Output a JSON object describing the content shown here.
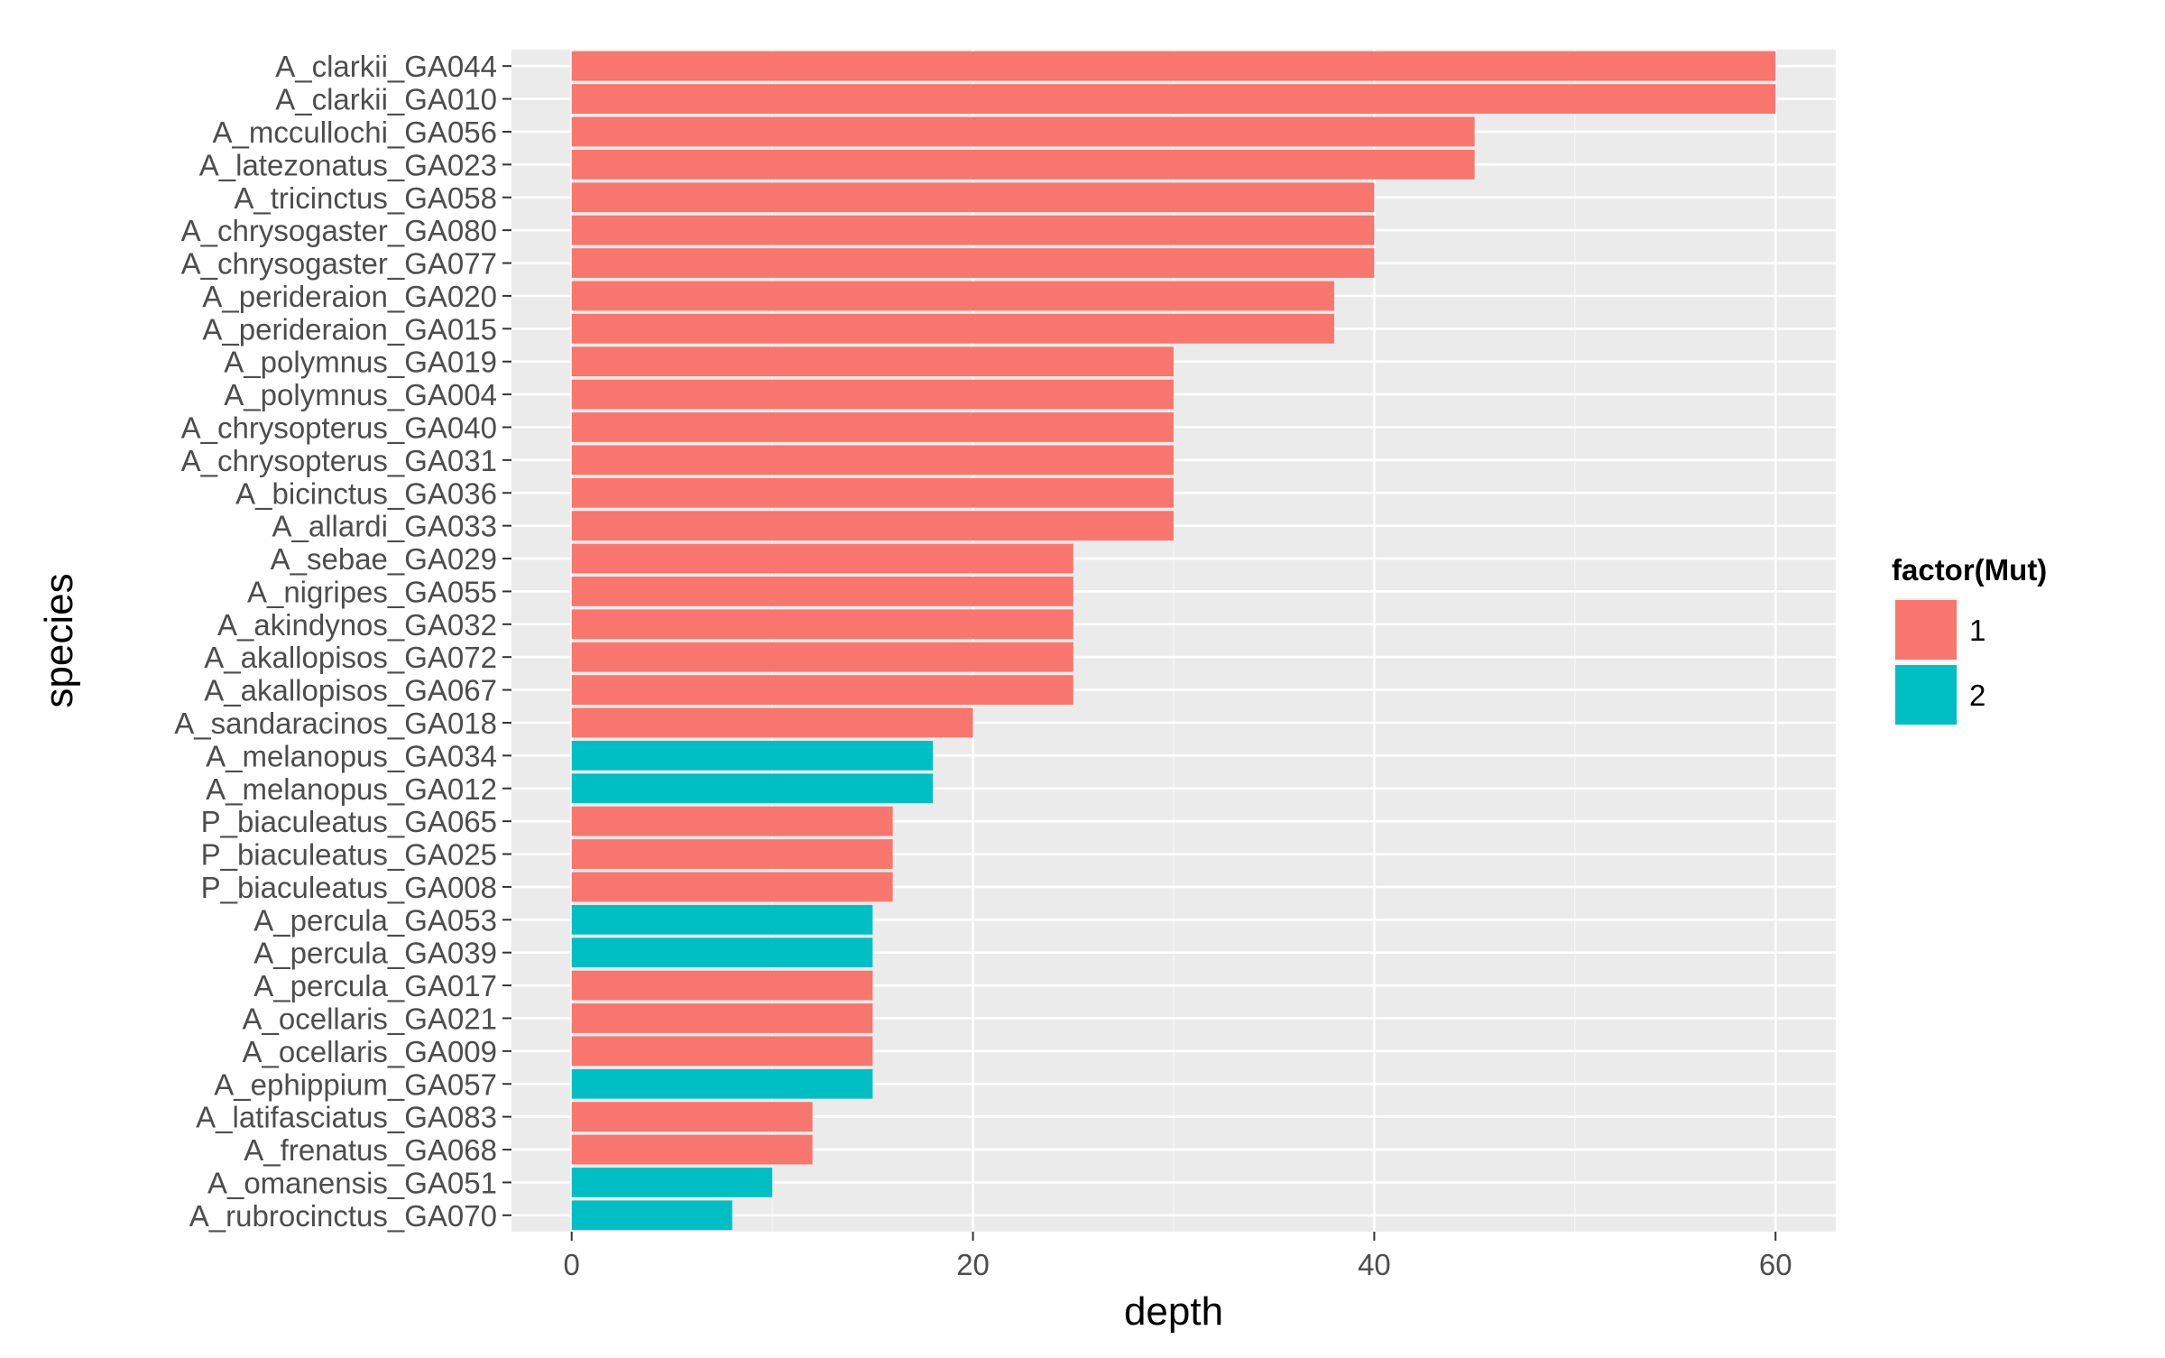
{
  "chart_data": {
    "type": "bar",
    "orientation": "horizontal",
    "xlabel": "depth",
    "ylabel": "species",
    "xlim": [
      -3,
      63
    ],
    "xticks": [
      0,
      20,
      40,
      60
    ],
    "grid": true,
    "legend": {
      "title": "factor(Mut)",
      "position": "right",
      "entries": [
        {
          "label": "1",
          "color": "#F8766D"
        },
        {
          "label": "2",
          "color": "#00BFC4"
        }
      ]
    },
    "categories": [
      "A_clarkii_GA044",
      "A_clarkii_GA010",
      "A_mccullochi_GA056",
      "A_latezonatus_GA023",
      "A_tricinctus_GA058",
      "A_chrysogaster_GA080",
      "A_chrysogaster_GA077",
      "A_perideraion_GA020",
      "A_perideraion_GA015",
      "A_polymnus_GA019",
      "A_polymnus_GA004",
      "A_chrysopterus_GA040",
      "A_chrysopterus_GA031",
      "A_bicinctus_GA036",
      "A_allardi_GA033",
      "A_sebae_GA029",
      "A_nigripes_GA055",
      "A_akindynos_GA032",
      "A_akallopisos_GA072",
      "A_akallopisos_GA067",
      "A_sandaracinos_GA018",
      "A_melanopus_GA034",
      "A_melanopus_GA012",
      "P_biaculeatus_GA065",
      "P_biaculeatus_GA025",
      "P_biaculeatus_GA008",
      "A_percula_GA053",
      "A_percula_GA039",
      "A_percula_GA017",
      "A_ocellaris_GA021",
      "A_ocellaris_GA009",
      "A_ephippium_GA057",
      "A_latifasciatus_GA083",
      "A_frenatus_GA068",
      "A_omanensis_GA051",
      "A_rubrocinctus_GA070"
    ],
    "values": [
      60,
      60,
      45,
      45,
      40,
      40,
      40,
      38,
      38,
      30,
      30,
      30,
      30,
      30,
      30,
      25,
      25,
      25,
      25,
      25,
      20,
      18,
      18,
      16,
      16,
      16,
      15,
      15,
      15,
      15,
      15,
      15,
      12,
      12,
      10,
      8
    ],
    "mut": [
      "1",
      "1",
      "1",
      "1",
      "1",
      "1",
      "1",
      "1",
      "1",
      "1",
      "1",
      "1",
      "1",
      "1",
      "1",
      "1",
      "1",
      "1",
      "1",
      "1",
      "1",
      "2",
      "2",
      "1",
      "1",
      "1",
      "2",
      "2",
      "1",
      "1",
      "1",
      "2",
      "1",
      "1",
      "2",
      "2"
    ]
  },
  "colors": {
    "panel_background": "#EBEBEB",
    "grid": "#FFFFFF",
    "tick_text": "#4D4D4D",
    "axis_title": "#000000"
  }
}
